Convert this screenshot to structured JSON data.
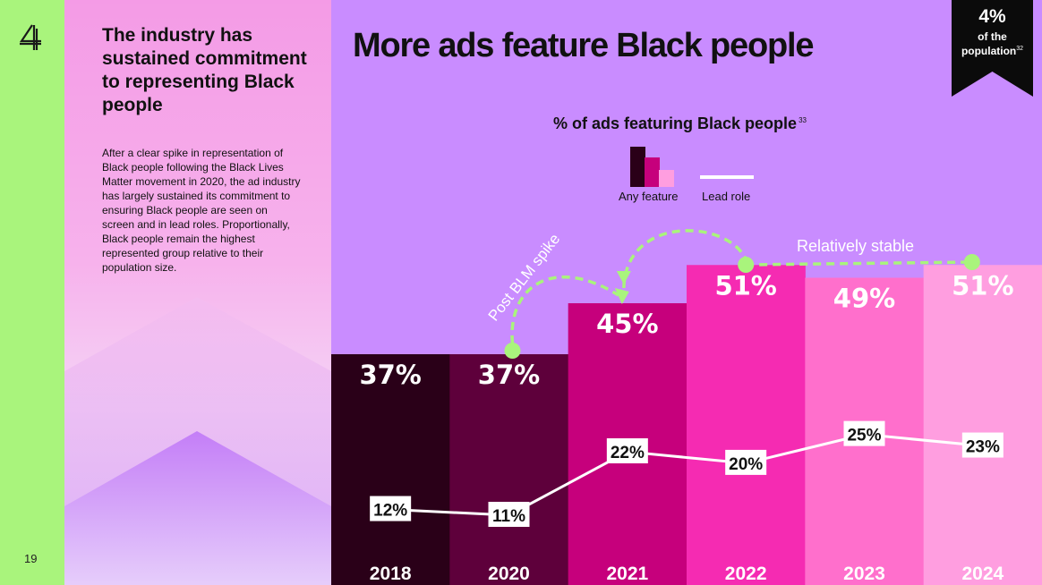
{
  "page": {
    "number": "19"
  },
  "side": {
    "title": "The industry has sustained commitment to representing Black people",
    "body": "After a clear spike in representation of Black people following the Black Lives Matter movement in 2020, the ad industry has largely sustained its commitment to ensuring Black people are seen on screen and in lead roles. Proportionally, Black people remain the highest represented group relative to their population size."
  },
  "main": {
    "title": "More ads feature Black people"
  },
  "badge": {
    "value": "4%",
    "label_line1": "of the",
    "label_line2": "population",
    "footnote": "32"
  },
  "colors": {
    "bars": [
      "#2a0018",
      "#5e003b",
      "#c6007c",
      "#f52bb2",
      "#ff6fcc",
      "#ff9ee0"
    ],
    "lead_line": "#ffffff",
    "annotation": "#a9f47c",
    "background": "#c98cff"
  },
  "chart_data": {
    "type": "bar",
    "title": "% of ads featuring Black people",
    "title_footnote": "33",
    "categories": [
      "2018",
      "2020",
      "2021",
      "2022",
      "2023",
      "2024"
    ],
    "series": [
      {
        "name": "Any feature",
        "type": "bar",
        "values": [
          37,
          37,
          45,
          51,
          49,
          51
        ],
        "labels": [
          "37%",
          "37%",
          "45%",
          "51%",
          "49%",
          "51%"
        ]
      },
      {
        "name": "Lead role",
        "type": "line",
        "values": [
          12,
          11,
          22,
          20,
          25,
          23
        ],
        "labels": [
          "12%",
          "11%",
          "22%",
          "20%",
          "25%",
          "23%"
        ]
      }
    ],
    "annotations": [
      {
        "text": "Post BLM spike",
        "from": "2020",
        "to": "2021"
      },
      {
        "text": "Relatively stable",
        "from": "2022",
        "to": "2024"
      }
    ],
    "legend": "top-center"
  }
}
